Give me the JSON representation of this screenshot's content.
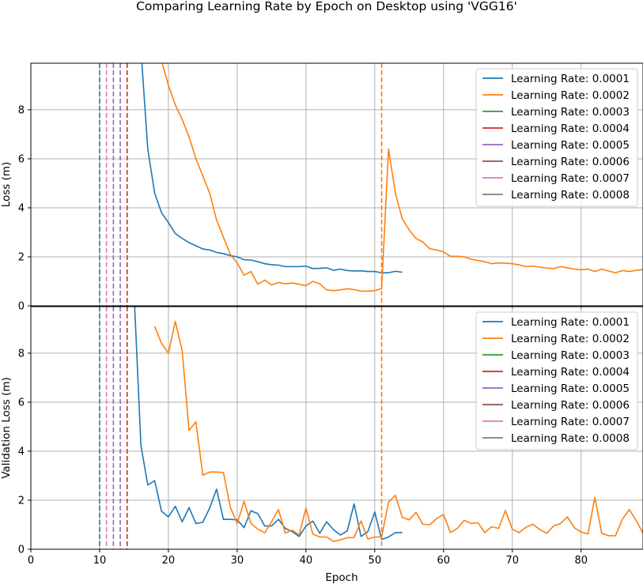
{
  "figure": {
    "title": "Comparing Learning Rate by Epoch on Desktop using 'VGG16'"
  },
  "colors": {
    "lr_0001": "#1f77b4",
    "lr_0002": "#ff7f0e",
    "lr_0003": "#2ca02c",
    "lr_0004": "#d62728",
    "lr_0005": "#9467bd",
    "lr_0006": "#8c564b",
    "lr_0007": "#e377c2",
    "lr_0008": "#7f7f7f",
    "grid": "#b0b0b0"
  },
  "chart_data": [
    {
      "type": "line",
      "title": "",
      "xlabel": "",
      "ylabel": "Loss (m)",
      "xlim": [
        0,
        89
      ],
      "ylim": [
        0,
        9.9
      ],
      "xticks": [
        0,
        10,
        20,
        30,
        40,
        50,
        60,
        70,
        80
      ],
      "yticks": [
        0,
        2,
        4,
        6,
        8
      ],
      "grid": true,
      "legend_position": "top-right",
      "vlines": [
        {
          "x": 10,
          "series": "Learning Rate: 0.0001"
        },
        {
          "x": 11,
          "series": "Learning Rate: 0.0007"
        },
        {
          "x": 12,
          "series": "Learning Rate: 0.0005"
        },
        {
          "x": 13,
          "series": "Learning Rate: 0.0005"
        },
        {
          "x": 14,
          "series": "Learning Rate: 0.0004"
        },
        {
          "x": 51,
          "series": "Learning Rate: 0.0002"
        }
      ],
      "series": [
        {
          "name": "Learning Rate: 0.0001",
          "x": [
            16,
            17,
            18,
            19,
            20,
            21,
            22,
            23,
            24,
            25,
            26,
            27,
            28,
            29,
            30,
            31,
            32,
            33,
            34,
            35,
            36,
            37,
            38,
            39,
            40,
            41,
            42,
            43,
            44,
            45,
            46,
            47,
            48,
            49,
            50,
            51,
            52,
            53,
            54
          ],
          "values": [
            10.5,
            6.4,
            4.6,
            3.8,
            3.4,
            2.95,
            2.75,
            2.58,
            2.45,
            2.32,
            2.28,
            2.18,
            2.13,
            2.05,
            2.0,
            1.88,
            1.87,
            1.8,
            1.72,
            1.68,
            1.66,
            1.6,
            1.6,
            1.6,
            1.62,
            1.52,
            1.53,
            1.55,
            1.45,
            1.5,
            1.44,
            1.42,
            1.43,
            1.4,
            1.4,
            1.35,
            1.35,
            1.41,
            1.37
          ]
        },
        {
          "name": "Learning Rate: 0.0002",
          "x": [
            19,
            20,
            21,
            22,
            23,
            24,
            25,
            26,
            27,
            28,
            29,
            30,
            31,
            32,
            33,
            34,
            35,
            36,
            37,
            38,
            39,
            40,
            41,
            42,
            43,
            44,
            45,
            46,
            47,
            48,
            49,
            50,
            51,
            52,
            53,
            54,
            55,
            56,
            57,
            58,
            59,
            60,
            61,
            62,
            63,
            64,
            65,
            66,
            67,
            68,
            69,
            70,
            71,
            72,
            73,
            74,
            75,
            76,
            77,
            78,
            79,
            80,
            81,
            82,
            83,
            84,
            85,
            86,
            87,
            88,
            89
          ],
          "values": [
            10.0,
            9.0,
            8.2,
            7.6,
            6.9,
            6.0,
            5.3,
            4.6,
            3.5,
            2.8,
            2.1,
            1.75,
            1.25,
            1.4,
            0.88,
            1.05,
            0.85,
            0.95,
            0.9,
            0.93,
            0.88,
            0.82,
            1.0,
            0.9,
            0.65,
            0.62,
            0.65,
            0.7,
            0.66,
            0.6,
            0.6,
            0.62,
            0.7,
            6.4,
            4.6,
            3.55,
            3.1,
            2.75,
            2.6,
            2.33,
            2.28,
            2.2,
            2.02,
            2.02,
            2.0,
            1.9,
            1.85,
            1.8,
            1.72,
            1.75,
            1.74,
            1.72,
            1.67,
            1.6,
            1.62,
            1.58,
            1.54,
            1.52,
            1.6,
            1.55,
            1.5,
            1.47,
            1.5,
            1.4,
            1.5,
            1.42,
            1.35,
            1.44,
            1.4,
            1.45,
            1.48
          ]
        },
        {
          "name": "Learning Rate: 0.0003",
          "x": [],
          "values": []
        },
        {
          "name": "Learning Rate: 0.0004",
          "x": [],
          "values": []
        },
        {
          "name": "Learning Rate: 0.0005",
          "x": [],
          "values": []
        },
        {
          "name": "Learning Rate: 0.0006",
          "x": [],
          "values": []
        },
        {
          "name": "Learning Rate: 0.0007",
          "x": [],
          "values": []
        },
        {
          "name": "Learning Rate: 0.0008",
          "x": [],
          "values": []
        }
      ]
    },
    {
      "type": "line",
      "title": "",
      "xlabel": "Epoch",
      "ylabel": "Validation Loss (m)",
      "xlim": [
        0,
        89
      ],
      "ylim": [
        0,
        9.9
      ],
      "xticks": [
        0,
        10,
        20,
        30,
        40,
        50,
        60,
        70,
        80
      ],
      "yticks": [
        0,
        2,
        4,
        6,
        8
      ],
      "grid": true,
      "legend_position": "top-right",
      "vlines": [
        {
          "x": 10,
          "series": "Learning Rate: 0.0001"
        },
        {
          "x": 11,
          "series": "Learning Rate: 0.0007"
        },
        {
          "x": 12,
          "series": "Learning Rate: 0.0005"
        },
        {
          "x": 13,
          "series": "Learning Rate: 0.0005"
        },
        {
          "x": 14,
          "series": "Learning Rate: 0.0004"
        },
        {
          "x": 51,
          "series": "Learning Rate: 0.0002"
        }
      ],
      "series": [
        {
          "name": "Learning Rate: 0.0001",
          "x": [
            15,
            16,
            17,
            18,
            19,
            20,
            21,
            22,
            23,
            24,
            25,
            26,
            27,
            28,
            29,
            30,
            31,
            32,
            33,
            34,
            35,
            36,
            37,
            38,
            39,
            40,
            41,
            42,
            43,
            44,
            45,
            46,
            47,
            48,
            49,
            50,
            51,
            52,
            53,
            54
          ],
          "values": [
            10.5,
            4.25,
            2.62,
            2.8,
            1.55,
            1.32,
            1.75,
            1.12,
            1.7,
            1.05,
            1.1,
            1.68,
            2.45,
            1.22,
            1.22,
            1.2,
            0.88,
            1.57,
            1.45,
            0.95,
            0.95,
            1.22,
            0.85,
            0.72,
            0.52,
            0.95,
            1.15,
            0.65,
            1.12,
            0.8,
            0.58,
            0.75,
            1.85,
            0.52,
            0.72,
            1.52,
            0.4,
            0.5,
            0.68,
            0.68
          ]
        },
        {
          "name": "Learning Rate: 0.0002",
          "x": [
            18,
            19,
            20,
            21,
            22,
            23,
            24,
            25,
            26,
            27,
            28,
            29,
            30,
            31,
            32,
            33,
            34,
            35,
            36,
            37,
            38,
            39,
            40,
            41,
            42,
            43,
            44,
            45,
            46,
            47,
            48,
            49,
            50,
            51,
            52,
            53,
            54,
            55,
            56,
            57,
            58,
            59,
            60,
            61,
            62,
            63,
            64,
            65,
            66,
            67,
            68,
            69,
            70,
            71,
            72,
            73,
            74,
            75,
            76,
            77,
            78,
            79,
            80,
            81,
            82,
            83,
            84,
            85,
            86,
            87,
            88,
            89
          ],
          "values": [
            9.1,
            8.4,
            8.0,
            9.3,
            8.1,
            4.85,
            5.2,
            3.02,
            3.15,
            3.15,
            3.13,
            1.72,
            1.05,
            1.95,
            1.05,
            0.82,
            0.67,
            1.12,
            1.62,
            0.66,
            0.78,
            0.58,
            1.68,
            0.62,
            0.5,
            0.5,
            0.32,
            0.38,
            0.47,
            0.48,
            1.15,
            0.42,
            0.5,
            0.5,
            1.92,
            2.2,
            1.3,
            1.2,
            1.5,
            1.02,
            1.0,
            1.25,
            1.42,
            0.68,
            0.85,
            1.18,
            1.05,
            1.08,
            0.68,
            0.92,
            0.85,
            1.58,
            0.82,
            0.68,
            0.9,
            1.02,
            0.8,
            0.65,
            0.95,
            1.05,
            1.32,
            0.88,
            0.7,
            0.62,
            2.12,
            0.65,
            0.55,
            0.55,
            1.22,
            1.62,
            1.18,
            0.65
          ]
        },
        {
          "name": "Learning Rate: 0.0003",
          "x": [],
          "values": []
        },
        {
          "name": "Learning Rate: 0.0004",
          "x": [],
          "values": []
        },
        {
          "name": "Learning Rate: 0.0005",
          "x": [],
          "values": []
        },
        {
          "name": "Learning Rate: 0.0006",
          "x": [],
          "values": []
        },
        {
          "name": "Learning Rate: 0.0007",
          "x": [],
          "values": []
        },
        {
          "name": "Learning Rate: 0.0008",
          "x": [],
          "values": []
        }
      ]
    }
  ]
}
